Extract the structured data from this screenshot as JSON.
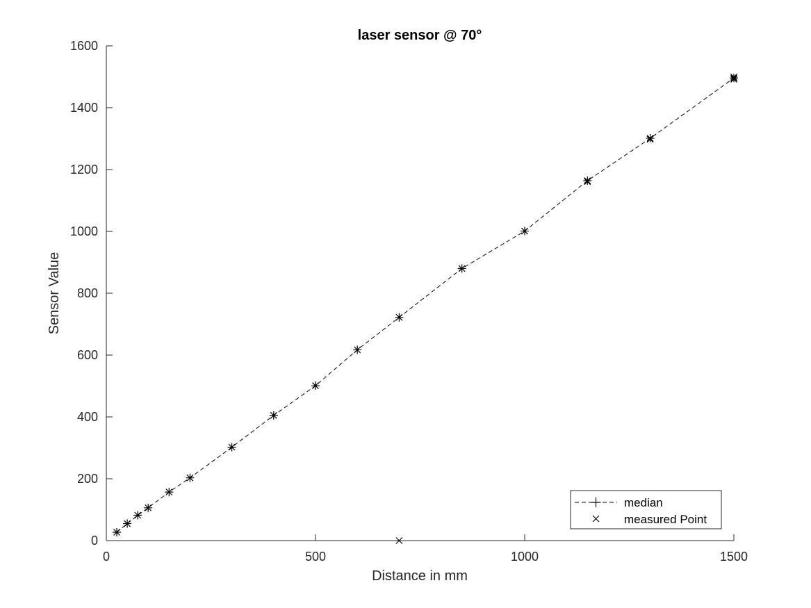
{
  "chart_data": {
    "type": "line",
    "title": "laser sensor @ 70°",
    "xlabel": "Distance in mm",
    "ylabel": "Sensor Value",
    "xlim": [
      0,
      1500
    ],
    "ylim": [
      0,
      1600
    ],
    "xticks": [
      0,
      500,
      1000,
      1500
    ],
    "yticks": [
      0,
      200,
      400,
      600,
      800,
      1000,
      1200,
      1400,
      1600
    ],
    "grid": false,
    "legend_position": "bottom-right",
    "series": [
      {
        "name": "median",
        "style": "dashed line with plus markers",
        "color": "#000000",
        "x": [
          25,
          50,
          75,
          100,
          150,
          200,
          300,
          400,
          500,
          600,
          700,
          850,
          1000,
          1150,
          1300,
          1500
        ],
        "y": [
          27,
          55,
          82,
          106,
          157,
          203,
          302,
          405,
          501,
          617,
          722,
          880,
          1001,
          1164,
          1301,
          1496
        ]
      },
      {
        "name": "measured Point",
        "style": "x markers",
        "color": "#000000",
        "x": [
          25,
          50,
          75,
          100,
          150,
          200,
          300,
          400,
          500,
          600,
          700,
          850,
          1000,
          1150,
          1300,
          1500,
          1500,
          1500,
          1300,
          1150,
          700
        ],
        "y": [
          27,
          55,
          82,
          106,
          157,
          203,
          302,
          405,
          501,
          617,
          722,
          880,
          1001,
          1164,
          1301,
          1496,
          1492,
          1499,
          1298,
          1161,
          0
        ]
      }
    ]
  }
}
